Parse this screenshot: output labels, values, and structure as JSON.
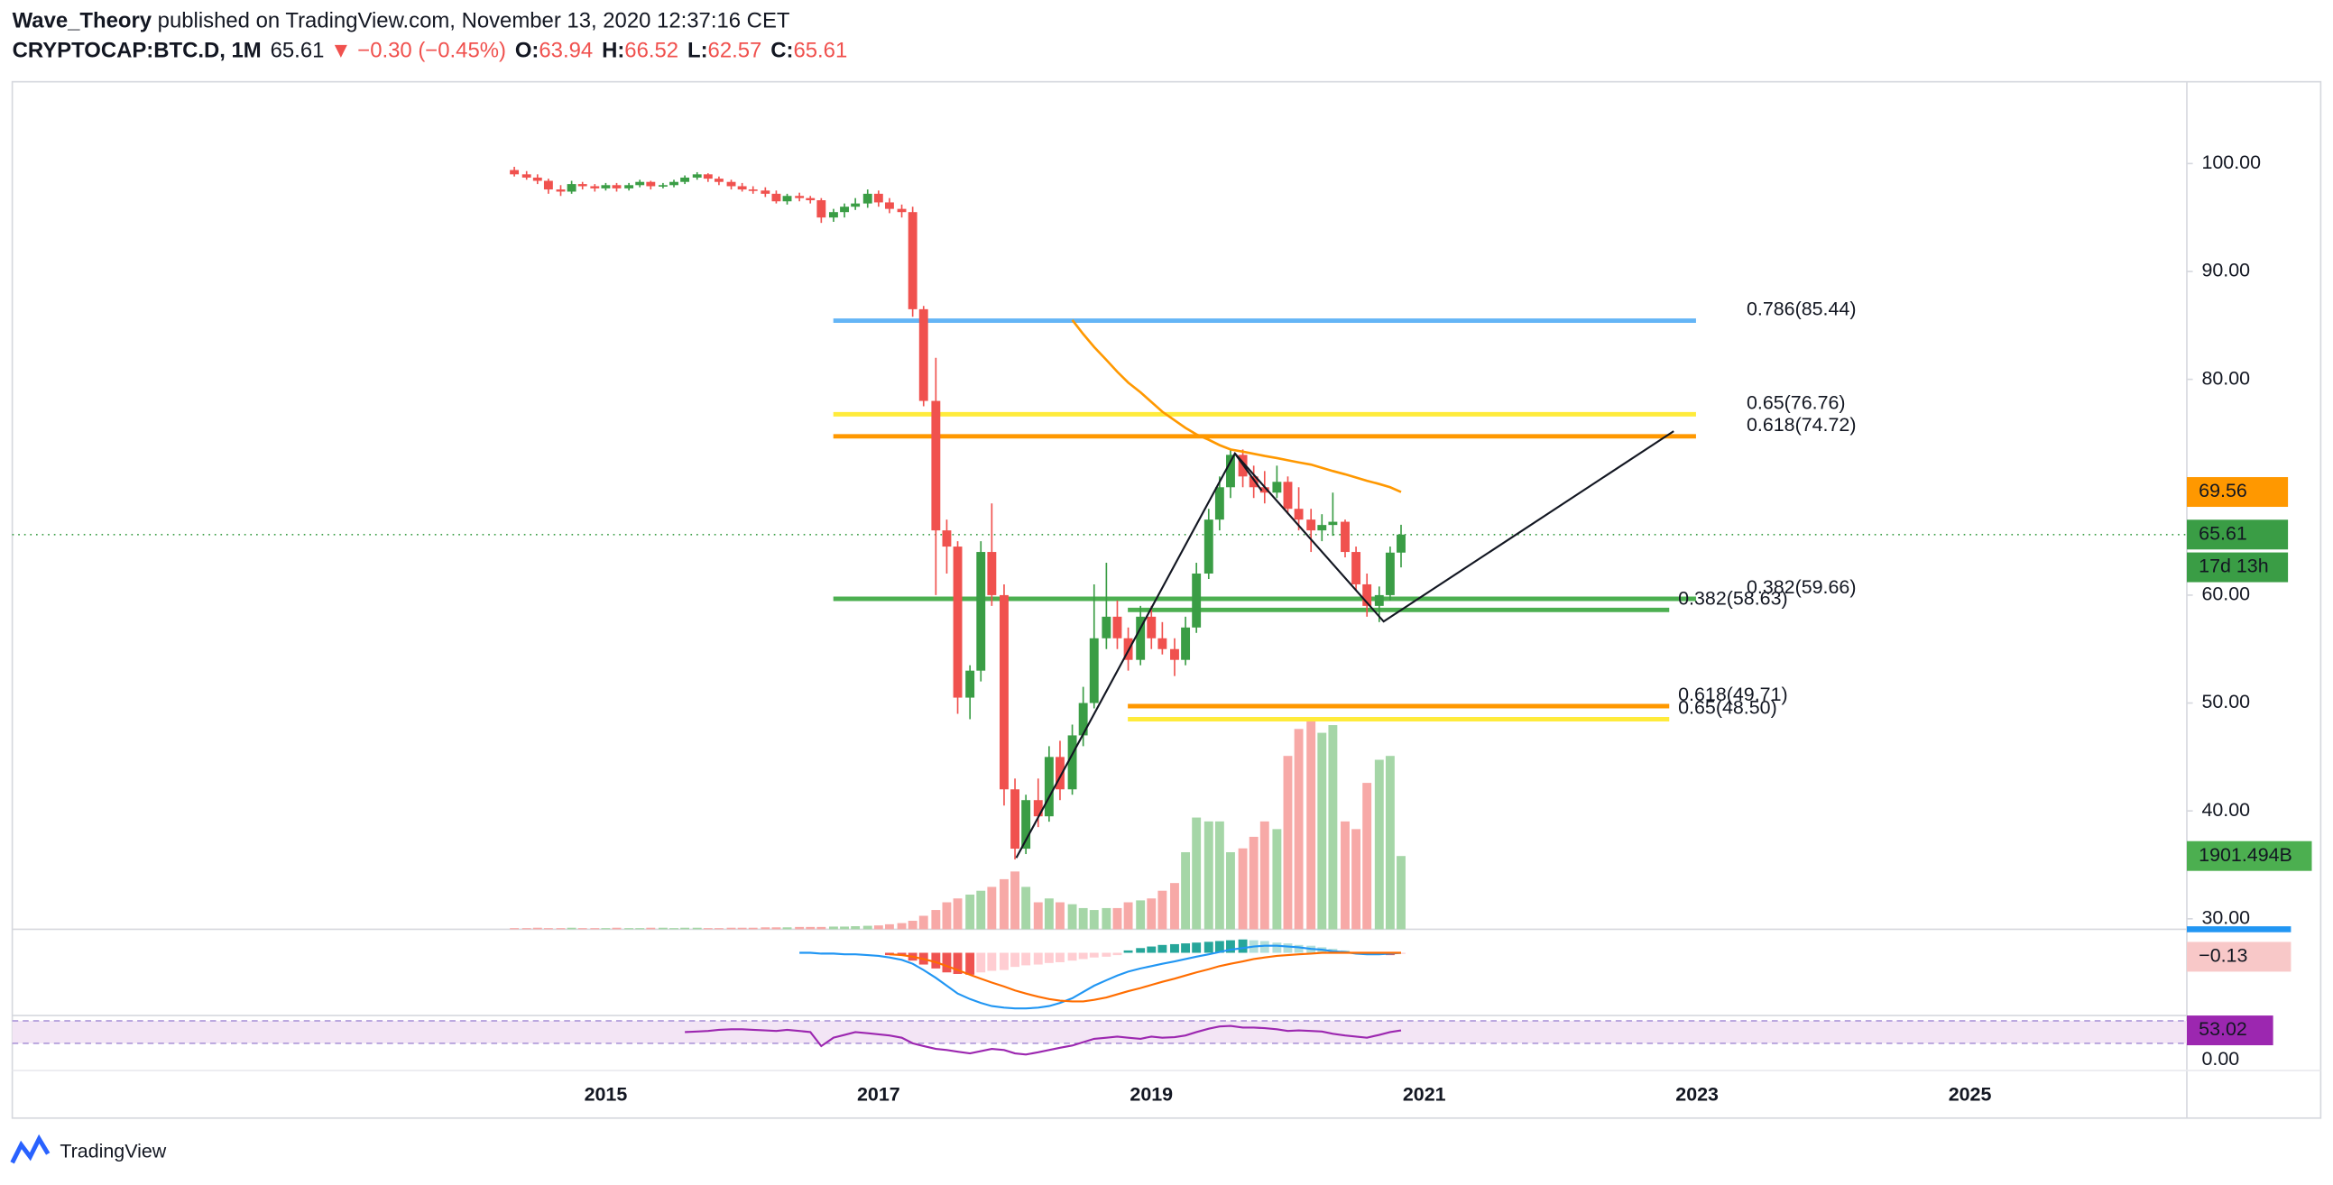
{
  "header": {
    "author": "Wave_Theory",
    "published": "published on TradingView.com, November 13, 2020 12:37:16 CET",
    "symbol": "CRYPTOCAP:BTC.D, 1M",
    "arrow": "▼",
    "change": "−0.30 (−0.45%)",
    "ohlc_labels": [
      "O:",
      "H:",
      "L:",
      "C:"
    ]
  },
  "footer": {
    "brand": "TradingView"
  },
  "chart_data": {
    "type": "candlestick",
    "x": [
      2014.33,
      2014.42,
      2014.5,
      2014.58,
      2014.67,
      2014.75,
      2014.83,
      2014.92,
      2015.0,
      2015.08,
      2015.17,
      2015.25,
      2015.33,
      2015.42,
      2015.5,
      2015.58,
      2015.67,
      2015.75,
      2015.83,
      2015.92,
      2016.0,
      2016.08,
      2016.17,
      2016.25,
      2016.33,
      2016.42,
      2016.5,
      2016.58,
      2016.67,
      2016.75,
      2016.83,
      2016.92,
      2017.0,
      2017.08,
      2017.17,
      2017.25,
      2017.33,
      2017.42,
      2017.5,
      2017.58,
      2017.67,
      2017.75,
      2017.83,
      2017.92,
      2018.0,
      2018.08,
      2018.17,
      2018.25,
      2018.33,
      2018.42,
      2018.5,
      2018.58,
      2018.67,
      2018.75,
      2018.83,
      2018.92,
      2019.0,
      2019.08,
      2019.17,
      2019.25,
      2019.33,
      2019.42,
      2019.5,
      2019.58,
      2019.67,
      2019.75,
      2019.83,
      2019.92,
      2020.0,
      2020.08,
      2020.17,
      2020.25,
      2020.33,
      2020.42,
      2020.5,
      2020.58,
      2020.67,
      2020.75,
      2020.83
    ],
    "open": [
      99.4,
      99.0,
      98.7,
      98.4,
      97.6,
      97.4,
      98.1,
      97.9,
      97.7,
      98.0,
      97.7,
      98.0,
      98.3,
      97.9,
      98.0,
      98.3,
      98.7,
      99.0,
      98.6,
      98.3,
      97.9,
      97.6,
      97.5,
      97.2,
      96.5,
      97.0,
      96.8,
      96.6,
      95.0,
      95.5,
      96.0,
      96.3,
      97.2,
      96.4,
      95.8,
      95.5,
      86.5,
      78.0,
      66.0,
      64.5,
      50.5,
      53.0,
      64.0,
      60.0,
      42.0,
      36.5,
      41.0,
      39.5,
      45.0,
      42.0,
      47.0,
      50.0,
      56.0,
      58.0,
      56.0,
      54.0,
      58.0,
      56.0,
      55.0,
      54.0,
      57.0,
      62.0,
      67.0,
      70.0,
      73.0,
      71.0,
      70.0,
      69.5,
      70.5,
      68.0,
      67.0,
      66.0,
      66.5,
      66.8,
      64.0,
      61.0,
      59.0,
      60.0,
      63.94
    ],
    "high": [
      99.7,
      99.3,
      99.0,
      98.6,
      98.0,
      98.4,
      98.3,
      98.1,
      98.2,
      98.2,
      98.2,
      98.5,
      98.4,
      98.2,
      98.5,
      98.9,
      99.2,
      99.1,
      98.8,
      98.5,
      98.2,
      97.9,
      97.8,
      97.5,
      97.2,
      97.3,
      97.0,
      96.8,
      95.8,
      96.3,
      96.8,
      97.6,
      97.5,
      96.8,
      96.2,
      96.0,
      86.8,
      82.0,
      67.0,
      65.0,
      53.5,
      65.0,
      68.5,
      61.0,
      43.0,
      41.5,
      43.0,
      46.0,
      46.5,
      48.0,
      51.5,
      61.0,
      63.0,
      59.5,
      57.0,
      59.0,
      59.0,
      57.5,
      56.0,
      58.0,
      63.0,
      68.0,
      71.0,
      73.5,
      73.5,
      72.0,
      71.5,
      72.0,
      71.0,
      70.0,
      68.0,
      67.5,
      69.5,
      67.0,
      64.5,
      62.0,
      60.8,
      64.5,
      66.52
    ],
    "low": [
      98.8,
      98.5,
      98.1,
      97.2,
      97.0,
      97.2,
      97.6,
      97.4,
      97.5,
      97.4,
      97.5,
      97.8,
      97.6,
      97.7,
      97.8,
      98.1,
      98.5,
      98.3,
      98.0,
      97.6,
      97.4,
      97.2,
      96.9,
      96.3,
      96.2,
      96.5,
      96.3,
      94.5,
      94.6,
      95.0,
      95.7,
      95.9,
      96.0,
      95.4,
      95.0,
      85.8,
      77.5,
      60.0,
      62.0,
      49.0,
      48.5,
      52.0,
      59.0,
      40.5,
      35.5,
      36.0,
      38.5,
      39.0,
      41.0,
      41.5,
      46.0,
      49.5,
      55.0,
      55.0,
      53.0,
      53.5,
      55.0,
      54.5,
      52.5,
      53.5,
      56.5,
      61.5,
      66.0,
      69.0,
      70.0,
      69.0,
      68.5,
      69.0,
      67.5,
      66.0,
      64.0,
      65.0,
      65.5,
      63.5,
      60.5,
      58.0,
      57.5,
      59.5,
      62.57
    ],
    "close": [
      99.0,
      98.7,
      98.4,
      97.6,
      97.4,
      98.1,
      97.9,
      97.7,
      98.0,
      97.7,
      98.0,
      98.3,
      97.9,
      98.0,
      98.3,
      98.7,
      99.0,
      98.6,
      98.3,
      97.9,
      97.6,
      97.5,
      97.2,
      96.5,
      97.0,
      96.8,
      96.6,
      95.0,
      95.5,
      96.0,
      96.3,
      97.2,
      96.4,
      95.8,
      95.5,
      86.5,
      78.0,
      66.0,
      64.5,
      50.5,
      53.0,
      64.0,
      60.0,
      42.0,
      36.5,
      41.0,
      39.5,
      45.0,
      42.0,
      47.0,
      50.0,
      56.0,
      58.0,
      56.0,
      54.0,
      58.0,
      56.0,
      55.0,
      54.0,
      57.0,
      62.0,
      67.0,
      70.0,
      73.0,
      71.0,
      70.0,
      69.5,
      70.5,
      68.0,
      67.0,
      66.0,
      66.5,
      66.8,
      64.0,
      61.0,
      59.0,
      60.0,
      63.94,
      65.61
    ],
    "up_color": "#3a9d45",
    "down_color": "#f0514e",
    "ma": {
      "color": "#ff9800",
      "values": [
        null,
        null,
        null,
        null,
        null,
        null,
        null,
        null,
        null,
        null,
        null,
        null,
        null,
        null,
        null,
        null,
        null,
        null,
        null,
        null,
        null,
        null,
        null,
        null,
        null,
        null,
        null,
        null,
        null,
        null,
        null,
        null,
        null,
        null,
        null,
        null,
        null,
        null,
        null,
        null,
        null,
        null,
        null,
        null,
        null,
        null,
        null,
        null,
        null,
        85.5,
        84.2,
        83.0,
        81.8,
        80.7,
        79.7,
        78.8,
        77.9,
        77.0,
        76.2,
        75.5,
        74.9,
        74.4,
        73.9,
        73.5,
        73.3,
        73.1,
        72.9,
        72.7,
        72.5,
        72.3,
        72.1,
        71.8,
        71.5,
        71.2,
        70.9,
        70.6,
        70.3,
        70.0,
        69.56
      ]
    },
    "volume": {
      "up_color": "#a5d6a7",
      "down_color": "#f7a9a7",
      "ylim": [
        0,
        22000
      ],
      "last_label": "1901.494B",
      "values": [
        30,
        30,
        40,
        30,
        30,
        40,
        30,
        30,
        30,
        40,
        30,
        30,
        40,
        40,
        30,
        40,
        40,
        30,
        30,
        40,
        40,
        40,
        50,
        50,
        50,
        60,
        60,
        60,
        70,
        70,
        80,
        90,
        100,
        130,
        160,
        220,
        350,
        500,
        700,
        800,
        900,
        1000,
        1100,
        1300,
        1500,
        1100,
        700,
        800,
        700,
        650,
        550,
        500,
        550,
        550,
        700,
        750,
        800,
        1000,
        1200,
        2000,
        2900,
        2800,
        2800,
        2000,
        2100,
        2400,
        2800,
        2600,
        4500,
        5200,
        5400,
        5100,
        5300,
        2800,
        2600,
        3800,
        4400,
        4500,
        1901.494
      ]
    },
    "fib_levels": [
      {
        "value": 85.44,
        "label": "0.786(85.44)",
        "color": "#64b5f6"
      },
      {
        "value": 76.76,
        "label": "0.65(76.76)",
        "color": "#ffeb3b"
      },
      {
        "value": 74.72,
        "label": "0.618(74.72)",
        "color": "#ff9800"
      },
      {
        "value": 59.66,
        "label": "0.382(59.66)",
        "color": "#4caf50"
      },
      {
        "value": 58.63,
        "label": "0.382(58.63)",
        "color": "#4caf50"
      },
      {
        "value": 49.71,
        "label": "0.618(49.71)",
        "color": "#ff9800"
      },
      {
        "value": 48.5,
        "label": "0.65(48.50)",
        "color": "#ffeb3b"
      }
    ],
    "countdown": "17d 13h",
    "xlim": [
      2010.65,
      2026.59
    ],
    "xticks": [
      2015,
      2017,
      2019,
      2021,
      2023,
      2025
    ],
    "ylim": [
      29.03,
      107.58
    ],
    "yticks": [
      {
        "value": 100,
        "label": "100.00"
      },
      {
        "value": 90,
        "label": "90.00"
      },
      {
        "value": 80,
        "label": "80.00"
      },
      {
        "value": 60,
        "label": "60.00"
      },
      {
        "value": 50,
        "label": "50.00"
      },
      {
        "value": 40,
        "label": "40.00"
      },
      {
        "value": 30,
        "label": "30.00"
      }
    ],
    "grid": false,
    "macd": {
      "ylim": [
        -8,
        3
      ],
      "last_label": "−0.13",
      "macd_color": "#2196f3",
      "signal_color": "#ff6d00",
      "histogram": [
        null,
        null,
        null,
        null,
        null,
        null,
        null,
        null,
        null,
        null,
        null,
        null,
        null,
        null,
        null,
        null,
        null,
        null,
        null,
        null,
        null,
        null,
        null,
        null,
        null,
        null,
        null,
        null,
        null,
        null,
        null,
        null,
        null,
        -0.3,
        -0.3,
        -1.0,
        -1.5,
        -2.0,
        -2.5,
        -2.7,
        -2.8,
        -2.5,
        -2.3,
        -2.2,
        -1.8,
        -1.6,
        -1.5,
        -1.3,
        -1.2,
        -1.0,
        -0.8,
        -0.6,
        -0.5,
        -0.3,
        0.3,
        0.6,
        0.8,
        1.0,
        1.1,
        1.2,
        1.3,
        1.4,
        1.5,
        1.6,
        1.7,
        1.6,
        1.5,
        1.3,
        1.2,
        1.0,
        0.9,
        0.7,
        0.5,
        0.3,
        0.1,
        -0.1,
        -0.2,
        -0.3,
        -0.13
      ],
      "macd": [
        null,
        null,
        null,
        null,
        null,
        null,
        null,
        null,
        null,
        null,
        null,
        null,
        null,
        null,
        null,
        null,
        null,
        null,
        null,
        null,
        null,
        null,
        null,
        null,
        null,
        0,
        0,
        -0.1,
        -0.1,
        -0.2,
        -0.2,
        -0.3,
        -0.4,
        -0.6,
        -0.9,
        -1.4,
        -2.2,
        -3.2,
        -4.2,
        -5.2,
        -5.9,
        -6.4,
        -6.8,
        -7.0,
        -7.1,
        -7.1,
        -7.0,
        -6.8,
        -6.4,
        -5.8,
        -5.0,
        -4.2,
        -3.5,
        -2.9,
        -2.4,
        -2.0,
        -1.7,
        -1.4,
        -1.1,
        -0.8,
        -0.5,
        -0.2,
        0.1,
        0.4,
        0.6,
        0.8,
        0.9,
        0.9,
        0.8,
        0.7,
        0.5,
        0.4,
        0.2,
        0.1,
        -0.1,
        -0.2,
        -0.2,
        -0.1,
        0.0
      ],
      "signal": [
        null,
        null,
        null,
        null,
        null,
        null,
        null,
        null,
        null,
        null,
        null,
        null,
        null,
        null,
        null,
        null,
        null,
        null,
        null,
        null,
        null,
        null,
        null,
        null,
        null,
        null,
        null,
        null,
        null,
        null,
        null,
        null,
        null,
        -0.2,
        -0.3,
        -0.5,
        -0.8,
        -1.2,
        -1.7,
        -2.2,
        -2.8,
        -3.3,
        -3.8,
        -4.3,
        -4.8,
        -5.2,
        -5.6,
        -5.9,
        -6.1,
        -6.2,
        -6.2,
        -6.0,
        -5.7,
        -5.3,
        -4.9,
        -4.5,
        -4.1,
        -3.7,
        -3.3,
        -2.9,
        -2.5,
        -2.1,
        -1.7,
        -1.4,
        -1.1,
        -0.8,
        -0.6,
        -0.4,
        -0.3,
        -0.2,
        -0.1,
        0,
        0,
        0,
        0,
        0,
        0,
        0,
        0
      ]
    },
    "rsi": {
      "ylim": [
        0,
        100
      ],
      "band": [
        30,
        70
      ],
      "color": "#9c27b0",
      "yticks": [
        {
          "value": 0,
          "label": "0.00"
        }
      ],
      "values": [
        null,
        null,
        null,
        null,
        null,
        null,
        null,
        null,
        null,
        null,
        null,
        null,
        null,
        null,
        null,
        50,
        51,
        52,
        54,
        55,
        55,
        54,
        53,
        52,
        54,
        52,
        50,
        25,
        40,
        45,
        50,
        48,
        46,
        44,
        40,
        30,
        25,
        20,
        18,
        15,
        12,
        16,
        20,
        18,
        12,
        10,
        14,
        18,
        22,
        26,
        32,
        38,
        40,
        42,
        40,
        38,
        42,
        40,
        41,
        44,
        50,
        56,
        60,
        61,
        58,
        58,
        57,
        55,
        52,
        53,
        52,
        51,
        47,
        44,
        42,
        40,
        45,
        50,
        53.02
      ]
    }
  }
}
